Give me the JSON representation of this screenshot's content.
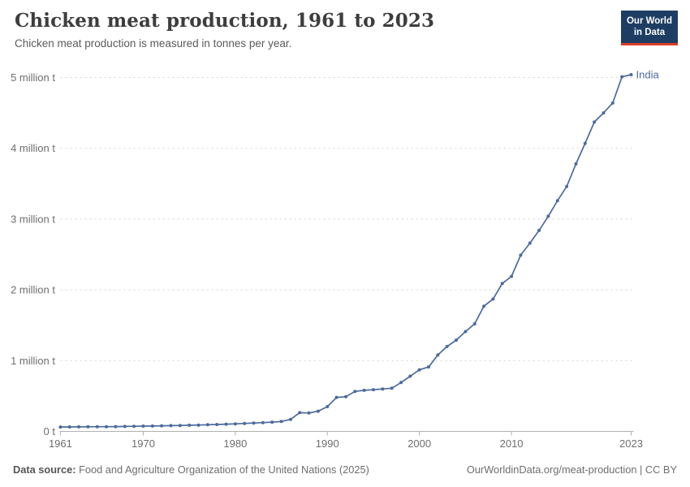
{
  "header": {
    "title": "Chicken meat production, 1961 to 2023",
    "subtitle": "Chicken meat production is measured in tonnes per year."
  },
  "logo": {
    "line1": "Our World",
    "line2": "in Data"
  },
  "chart_data": {
    "type": "line",
    "title": "Chicken meat production, 1961 to 2023",
    "xlabel": "",
    "ylabel": "tonnes per year",
    "values_unit": "million tonnes",
    "xlim": [
      1961,
      2023
    ],
    "ylim": [
      0,
      5
    ],
    "grid": "horizontal dashed",
    "legend_position": "end-of-line label",
    "xticks": [
      1961,
      1970,
      1980,
      1990,
      2000,
      2010,
      2023
    ],
    "yticks": [
      {
        "value": 0,
        "label": "0 t"
      },
      {
        "value": 1,
        "label": "1 million t"
      },
      {
        "value": 2,
        "label": "2 million t"
      },
      {
        "value": 3,
        "label": "3 million t"
      },
      {
        "value": 4,
        "label": "4 million t"
      },
      {
        "value": 5,
        "label": "5 million t"
      }
    ],
    "x": [
      1961,
      1962,
      1963,
      1964,
      1965,
      1966,
      1967,
      1968,
      1969,
      1970,
      1971,
      1972,
      1973,
      1974,
      1975,
      1976,
      1977,
      1978,
      1979,
      1980,
      1981,
      1982,
      1983,
      1984,
      1985,
      1986,
      1987,
      1988,
      1989,
      1990,
      1991,
      1992,
      1993,
      1994,
      1995,
      1996,
      1997,
      1998,
      1999,
      2000,
      2001,
      2002,
      2003,
      2004,
      2005,
      2006,
      2007,
      2008,
      2009,
      2010,
      2011,
      2012,
      2013,
      2014,
      2015,
      2016,
      2017,
      2018,
      2019,
      2020,
      2021,
      2022,
      2023
    ],
    "series": [
      {
        "name": "India",
        "values": [
          0.062,
          0.063,
          0.064,
          0.065,
          0.066,
          0.067,
          0.068,
          0.07,
          0.072,
          0.074,
          0.076,
          0.079,
          0.081,
          0.084,
          0.087,
          0.09,
          0.094,
          0.098,
          0.102,
          0.107,
          0.112,
          0.118,
          0.124,
          0.131,
          0.14,
          0.17,
          0.265,
          0.26,
          0.285,
          0.35,
          0.48,
          0.49,
          0.565,
          0.58,
          0.59,
          0.6,
          0.61,
          0.69,
          0.78,
          0.87,
          0.91,
          1.08,
          1.2,
          1.29,
          1.41,
          1.52,
          1.77,
          1.87,
          2.09,
          2.19,
          2.49,
          2.66,
          2.84,
          3.04,
          3.26,
          3.46,
          3.78,
          4.07,
          4.37,
          4.5,
          4.64,
          5.01,
          5.04
        ]
      }
    ]
  },
  "footer": {
    "source_prefix": "Data source:",
    "source": " Food and Agriculture Organization of the United Nations (2025)",
    "link": "OurWorldinData.org/meat-production",
    "separator": " | ",
    "license": "CC BY"
  },
  "colors": {
    "series": "#4c6a9c",
    "grid": "#dcdcdc",
    "axis": "#b0b0b0",
    "tick_text": "#6e6e6e",
    "logo_bg": "#1d3d63",
    "logo_accent": "#dc3e26"
  }
}
